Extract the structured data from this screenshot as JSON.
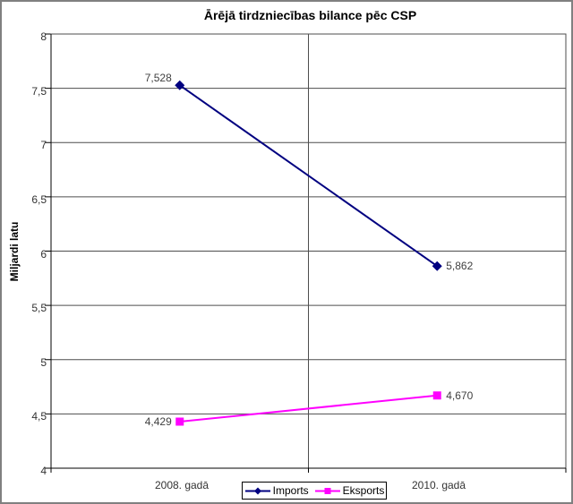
{
  "window": {
    "background": "#ffffff",
    "frame_color": "#808080"
  },
  "chart_data": {
    "type": "line",
    "title": "Ārējā tirdzniecības bilance pēc CSP",
    "ylabel": "Miljardi latu",
    "xlabel": "",
    "categories": [
      "2008. gadā",
      "2010. gadā"
    ],
    "ylim": [
      4,
      8
    ],
    "ytick_step": 0.5,
    "ytick_labels": [
      "4",
      "4,5",
      "5",
      "5,5",
      "6",
      "6,5",
      "7",
      "7,5",
      "8"
    ],
    "grid": true,
    "gridline_color": "#4d4d4d",
    "axis_color": "#000000",
    "label_color": "#404040",
    "legend_position": "bottom-center",
    "series": [
      {
        "name": "Imports",
        "color": "#000080",
        "marker": "diamond",
        "values": [
          7.528,
          5.862
        ],
        "point_labels": [
          {
            "text": "7,528",
            "side": "left",
            "valign": "above"
          },
          {
            "text": "5,862",
            "side": "right",
            "valign": "middle"
          }
        ]
      },
      {
        "name": "Eksports",
        "color": "#FF00FF",
        "marker": "square",
        "values": [
          4.429,
          4.67
        ],
        "point_labels": [
          {
            "text": "4,429",
            "side": "left",
            "valign": "middle"
          },
          {
            "text": "4,670",
            "side": "right",
            "valign": "middle"
          }
        ]
      }
    ]
  }
}
